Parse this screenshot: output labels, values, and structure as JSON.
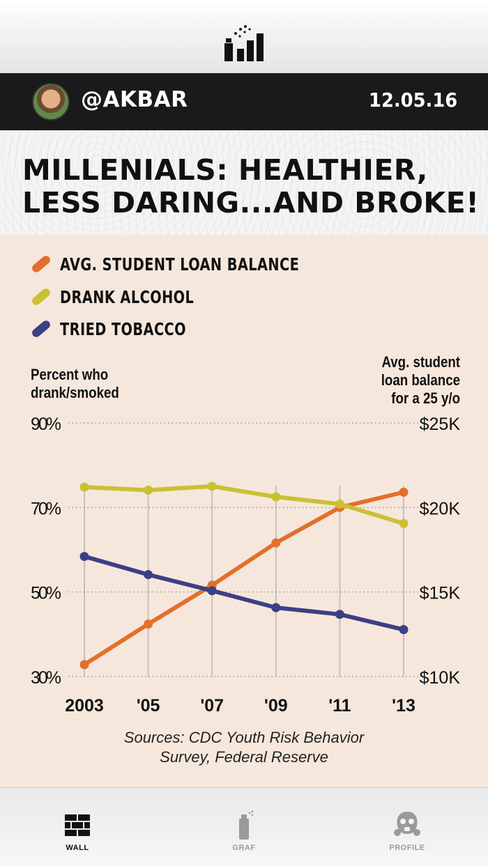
{
  "header": {
    "logo_icon": "spray-can-bars-icon"
  },
  "user_bar": {
    "username": "@AKBAR",
    "date": "12.05.16",
    "avatar_icon": "user-avatar"
  },
  "headline": {
    "line1": "MILLENIALS: HEALTHIER,",
    "line2": "LESS DARING...AND BROKE!"
  },
  "legend": [
    {
      "label": "AVG. STUDENT LOAN BALANCE",
      "color": "#e2702c"
    },
    {
      "label": "DRANK ALCOHOL",
      "color": "#c9c132"
    },
    {
      "label": "TRIED TOBACCO",
      "color": "#3b3f85"
    }
  ],
  "chart_data": {
    "type": "line",
    "categories": [
      "2003",
      "'05",
      "'07",
      "'09",
      "'11",
      "'13"
    ],
    "left_axis": {
      "title": "Percent who drank/smoked",
      "ticks": [
        "90%",
        "70%",
        "50%",
        "30%"
      ],
      "tick_values": [
        90,
        70,
        50,
        30
      ],
      "range": [
        30,
        90
      ]
    },
    "right_axis": {
      "title": "Avg. student loan balance for a 25 y/o",
      "ticks": [
        "$25K",
        "$20K",
        "$15K",
        "$10K"
      ],
      "tick_values": [
        25000,
        20000,
        15000,
        10000
      ],
      "range": [
        10000,
        25000
      ]
    },
    "series": [
      {
        "name": "AVG. STUDENT LOAN BALANCE",
        "axis": "right",
        "color": "#e2702c",
        "values": [
          10700,
          13100,
          15400,
          17900,
          20000,
          20900
        ]
      },
      {
        "name": "DRANK ALCOHOL",
        "axis": "left",
        "color": "#c9c132",
        "values": [
          74.8,
          74.1,
          75.0,
          72.5,
          70.8,
          66.2
        ]
      },
      {
        "name": "TRIED TOBACCO",
        "axis": "left",
        "color": "#3b3f85",
        "values": [
          58.4,
          54.1,
          50.3,
          46.3,
          44.7,
          41.1
        ]
      }
    ],
    "grid": "dotted horizontal",
    "legend_position": "top-left"
  },
  "sources": {
    "line1": "Sources: CDC Youth Risk Behavior",
    "line2": "Survey, Federal Reserve"
  },
  "tabs": [
    {
      "label": "WALL",
      "icon": "brick-wall-icon",
      "active": true
    },
    {
      "label": "GRAF",
      "icon": "spray-can-icon",
      "active": false
    },
    {
      "label": "PROFILE",
      "icon": "gas-mask-icon",
      "active": false
    }
  ],
  "colors": {
    "active_tab": "#111111",
    "inactive_tab": "#9a9a9a",
    "panel": "#f6e7dc",
    "bar": "#1a1a1a"
  }
}
